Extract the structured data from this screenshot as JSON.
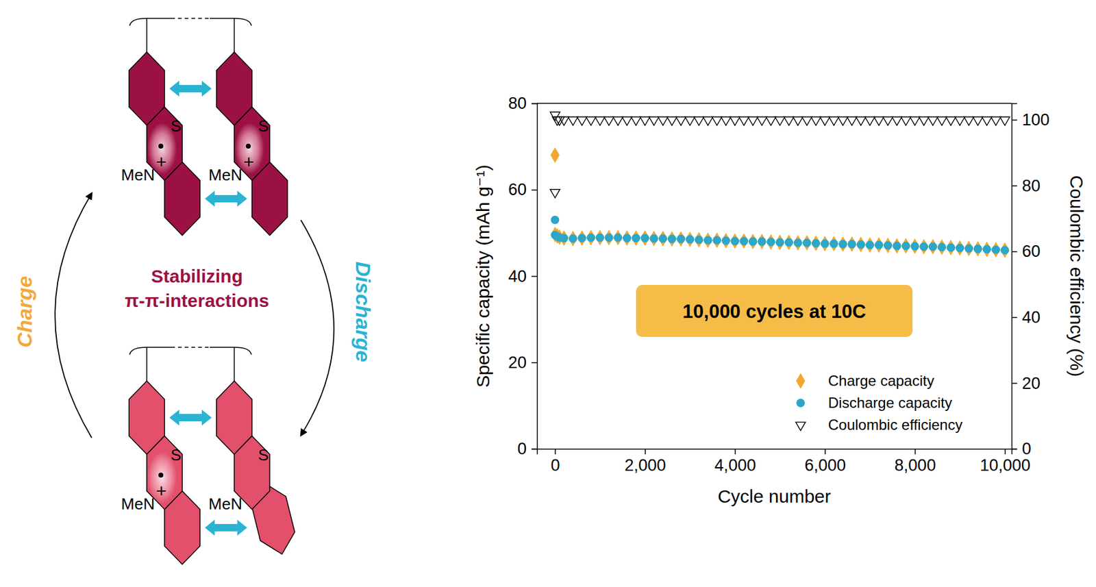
{
  "chart_data": {
    "type": "scatter",
    "x_label": "Cycle number",
    "y_label": "Specific capacity (mAh g⁻¹)",
    "y2_label": "Coulombic efficiency (%)",
    "annotation": "10,000 cycles at 10C",
    "xlim": [
      -400,
      10150
    ],
    "xticks": [
      0,
      {
        "value": 2000,
        "label": "2,000"
      },
      {
        "value": 4000,
        "label": "4,000"
      },
      {
        "value": 6000,
        "label": "6,000"
      },
      {
        "value": 8000,
        "label": "8,000"
      },
      {
        "value": 10000,
        "label": "10,000"
      }
    ],
    "ylim": [
      0,
      80
    ],
    "yticks": [
      0,
      20,
      40,
      60,
      80
    ],
    "y2lim": [
      0,
      105
    ],
    "y2ticks": [
      0,
      20,
      40,
      60,
      80,
      100
    ],
    "legend": "lower right",
    "x": [
      1,
      2,
      50,
      100,
      200,
      400,
      600,
      800,
      1000,
      1200,
      1400,
      1600,
      1800,
      2000,
      2200,
      2400,
      2600,
      2800,
      3000,
      3200,
      3400,
      3600,
      3800,
      4000,
      4200,
      4400,
      4600,
      4800,
      5000,
      5200,
      5400,
      5600,
      5800,
      6000,
      6200,
      6400,
      6600,
      6800,
      7000,
      7200,
      7400,
      7600,
      7800,
      8000,
      8200,
      8400,
      8600,
      8800,
      9000,
      9200,
      9400,
      9600,
      9800,
      10000
    ],
    "series": [
      {
        "name": "Charge capacity",
        "color": "#f0a830",
        "marker": "diamond",
        "values": [
          68,
          49.6,
          49.3,
          49.0,
          48.8,
          48.7,
          48.8,
          48.9,
          48.9,
          48.9,
          48.9,
          48.8,
          48.8,
          48.8,
          48.7,
          48.7,
          48.6,
          48.6,
          48.5,
          48.4,
          48.3,
          48.3,
          48.2,
          48.1,
          48.1,
          48.0,
          48.0,
          47.9,
          47.8,
          47.8,
          47.7,
          47.7,
          47.6,
          47.5,
          47.5,
          47.4,
          47.4,
          47.3,
          47.2,
          47.2,
          47.1,
          47.0,
          47.0,
          46.9,
          46.8,
          46.8,
          46.7,
          46.6,
          46.5,
          46.4,
          46.3,
          46.2,
          46.1,
          46.0
        ]
      },
      {
        "name": "Discharge capacity",
        "color": "#2aa7c9",
        "marker": "circle",
        "values": [
          53,
          49.5,
          49.2,
          48.9,
          48.8,
          48.7,
          48.8,
          48.9,
          48.9,
          48.9,
          48.9,
          48.8,
          48.8,
          48.8,
          48.7,
          48.7,
          48.6,
          48.6,
          48.5,
          48.4,
          48.3,
          48.3,
          48.2,
          48.1,
          48.1,
          48.0,
          48.0,
          47.9,
          47.8,
          47.8,
          47.7,
          47.7,
          47.6,
          47.5,
          47.5,
          47.4,
          47.4,
          47.3,
          47.2,
          47.2,
          47.1,
          47.0,
          47.0,
          46.9,
          46.8,
          46.8,
          46.7,
          46.6,
          46.5,
          46.4,
          46.3,
          46.2,
          46.1,
          46.0
        ]
      },
      {
        "name": "Coulombic efficiency",
        "color": "#000000",
        "marker": "triangle-down",
        "axis": "y2",
        "values": [
          78,
          101.5,
          100,
          100,
          100,
          100,
          100,
          100,
          100,
          100,
          100,
          100,
          100,
          100,
          100,
          100,
          100,
          100,
          100,
          100,
          100,
          100,
          100,
          100,
          100,
          100,
          100,
          100,
          100,
          100,
          100,
          100,
          100,
          100,
          100,
          100,
          100,
          100,
          100,
          100,
          100,
          100,
          100,
          100,
          100,
          100,
          100,
          100,
          100,
          100,
          100,
          100,
          100,
          100
        ]
      }
    ]
  },
  "diagram": {
    "charge": "Charge",
    "discharge": "Discharge",
    "caption": [
      "Stabilizing",
      "π-π-interactions"
    ],
    "molecules": [
      {
        "sulfur": "S",
        "nitrogen": "MeN",
        "charge": "+"
      },
      {
        "sulfur": "S",
        "nitrogen": "MeN",
        "charge": "+"
      },
      {
        "sulfur": "S",
        "nitrogen": "MeN",
        "charge": "+"
      },
      {
        "sulfur": "S",
        "nitrogen": "MeN"
      }
    ]
  }
}
